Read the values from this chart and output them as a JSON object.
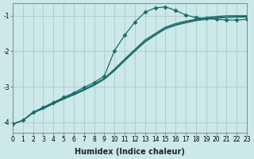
{
  "xlabel": "Humidex (Indice chaleur)",
  "xlim": [
    0,
    23
  ],
  "ylim": [
    -4.3,
    -0.65
  ],
  "yticks": [
    -4,
    -3,
    -2,
    -1
  ],
  "xticks": [
    0,
    1,
    2,
    3,
    4,
    5,
    6,
    7,
    8,
    9,
    10,
    11,
    12,
    13,
    14,
    15,
    16,
    17,
    18,
    19,
    20,
    21,
    22,
    23
  ],
  "bg_color": "#cce8e8",
  "grid_color": "#aacccc",
  "line_color": "#1a6b6b",
  "line1_x": [
    0,
    1,
    2,
    3,
    4,
    5,
    6,
    7,
    8,
    9,
    10,
    11,
    12,
    13,
    14,
    15,
    16,
    17,
    18,
    19,
    20,
    21,
    22,
    23
  ],
  "line1_y": [
    -4.05,
    -3.95,
    -3.72,
    -3.58,
    -3.44,
    -3.3,
    -3.17,
    -3.02,
    -2.88,
    -2.7,
    -1.98,
    -1.55,
    -1.18,
    -0.9,
    -0.78,
    -0.75,
    -0.85,
    -0.98,
    -1.05,
    -1.08,
    -1.1,
    -1.12,
    -1.12,
    -1.1
  ],
  "line2_x": [
    0,
    1,
    2,
    3,
    4,
    5,
    6,
    7,
    8,
    9,
    10,
    11,
    12,
    13,
    14,
    15,
    16,
    17,
    18,
    19,
    20,
    21,
    22,
    23
  ],
  "line2_y": [
    -4.05,
    -3.95,
    -3.72,
    -3.6,
    -3.46,
    -3.33,
    -3.2,
    -3.07,
    -2.93,
    -2.76,
    -2.5,
    -2.22,
    -1.95,
    -1.68,
    -1.5,
    -1.32,
    -1.22,
    -1.15,
    -1.1,
    -1.05,
    -1.02,
    -1.0,
    -1.0,
    -1.0
  ],
  "line3_x": [
    0,
    1,
    2,
    3,
    4,
    5,
    6,
    7,
    8,
    9,
    10,
    11,
    12,
    13,
    14,
    15,
    16,
    17,
    18,
    19,
    20,
    21,
    22,
    23
  ],
  "line3_y": [
    -4.05,
    -3.95,
    -3.73,
    -3.61,
    -3.47,
    -3.34,
    -3.22,
    -3.09,
    -2.95,
    -2.78,
    -2.53,
    -2.25,
    -1.98,
    -1.72,
    -1.53,
    -1.35,
    -1.25,
    -1.18,
    -1.12,
    -1.08,
    -1.05,
    -1.03,
    -1.02,
    -1.02
  ],
  "line4_x": [
    0,
    1,
    2,
    3,
    4,
    5,
    6,
    7,
    8,
    9,
    10,
    11,
    12,
    13,
    14,
    15,
    16,
    17,
    18,
    19,
    20,
    21,
    22,
    23
  ],
  "line4_y": [
    -4.05,
    -3.95,
    -3.74,
    -3.62,
    -3.48,
    -3.35,
    -3.23,
    -3.1,
    -2.96,
    -2.79,
    -2.55,
    -2.27,
    -2.0,
    -1.74,
    -1.55,
    -1.37,
    -1.27,
    -1.2,
    -1.14,
    -1.1,
    -1.07,
    -1.05,
    -1.04,
    -1.04
  ]
}
